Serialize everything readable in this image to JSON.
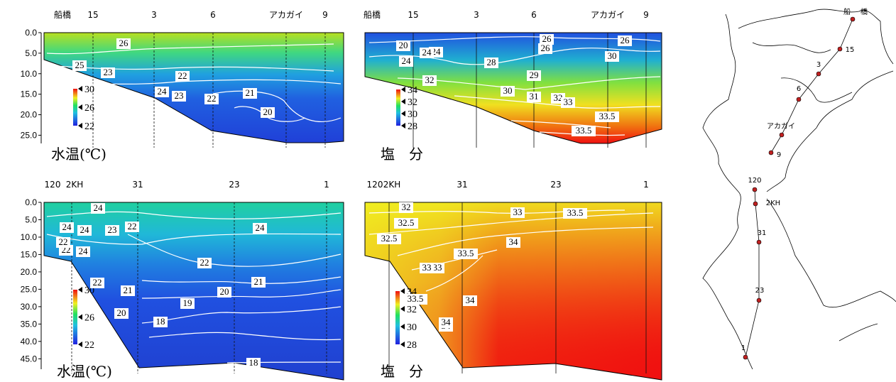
{
  "colors": {
    "water_low": "#2040d8",
    "water_mid": "#20d8a0",
    "water_high": "#f0f020",
    "salt_high": "#f01010",
    "station_dot": "#c02020"
  },
  "chart_data": [
    {
      "type": "heatmap",
      "panel": "top-left",
      "caption": "水温(℃)",
      "stations": [
        "船橋",
        "15",
        "3",
        "6",
        "アカガイ",
        "9"
      ],
      "depth_ticks": [
        "0.0",
        "5.0",
        "10.0",
        "15.0",
        "20.0",
        "25.0"
      ],
      "ylim": [
        0,
        27
      ],
      "legend": {
        "labels": [
          "30",
          "26",
          "22"
        ],
        "range": [
          22,
          30
        ]
      },
      "contours": [
        "26",
        "25",
        "23",
        "22",
        "24",
        "23",
        "22",
        "21",
        "20"
      ]
    },
    {
      "type": "heatmap",
      "panel": "top-right",
      "caption": "塩　分",
      "stations": [
        "船橋",
        "15",
        "3",
        "6",
        "アカガイ",
        "9"
      ],
      "depth_ticks": [],
      "ylim": [
        0,
        27
      ],
      "legend": {
        "labels": [
          "34",
          "32",
          "30",
          "28"
        ],
        "range": [
          28,
          34
        ]
      },
      "contours": [
        "20",
        "24",
        "26",
        "24",
        "28",
        "24",
        "26",
        "26",
        "30",
        "32",
        "29",
        "30",
        "31",
        "32",
        "33",
        "33.5",
        "33.5"
      ]
    },
    {
      "type": "heatmap",
      "panel": "bottom-left",
      "caption": "水温(℃)",
      "stations": [
        "120",
        "2KH",
        "31",
        "23",
        "1"
      ],
      "depth_ticks": [
        "0.0",
        "5.0",
        "10.0",
        "15.0",
        "20.0",
        "25.0",
        "30.0",
        "35.0",
        "40.0",
        "45.0"
      ],
      "ylim": [
        0,
        48
      ],
      "legend": {
        "labels": [
          "30",
          "26",
          "22"
        ],
        "range": [
          22,
          30
        ]
      },
      "contours": [
        "24",
        "24",
        "23",
        "22",
        "24",
        "22",
        "24",
        "22",
        "22",
        "21",
        "20",
        "21",
        "19",
        "20",
        "18",
        "18",
        "22",
        "24"
      ]
    },
    {
      "type": "heatmap",
      "panel": "bottom-right",
      "caption": "塩　分",
      "stations": [
        "120",
        "2KH",
        "31",
        "23",
        "1"
      ],
      "depth_ticks": [],
      "ylim": [
        0,
        48
      ],
      "legend": {
        "labels": [
          "34",
          "32",
          "30",
          "28"
        ],
        "range": [
          28,
          34
        ]
      },
      "contours": [
        "32",
        "33",
        "33.5",
        "32.5",
        "32.5",
        "33",
        "34",
        "33.5",
        "33",
        "34",
        "33.5",
        "34",
        "34"
      ]
    }
  ],
  "map": {
    "stations": [
      "船",
      "橋",
      "15",
      "3",
      "6",
      "アカガイ",
      "9",
      "120",
      "2KH",
      "31",
      "23",
      "1"
    ]
  }
}
